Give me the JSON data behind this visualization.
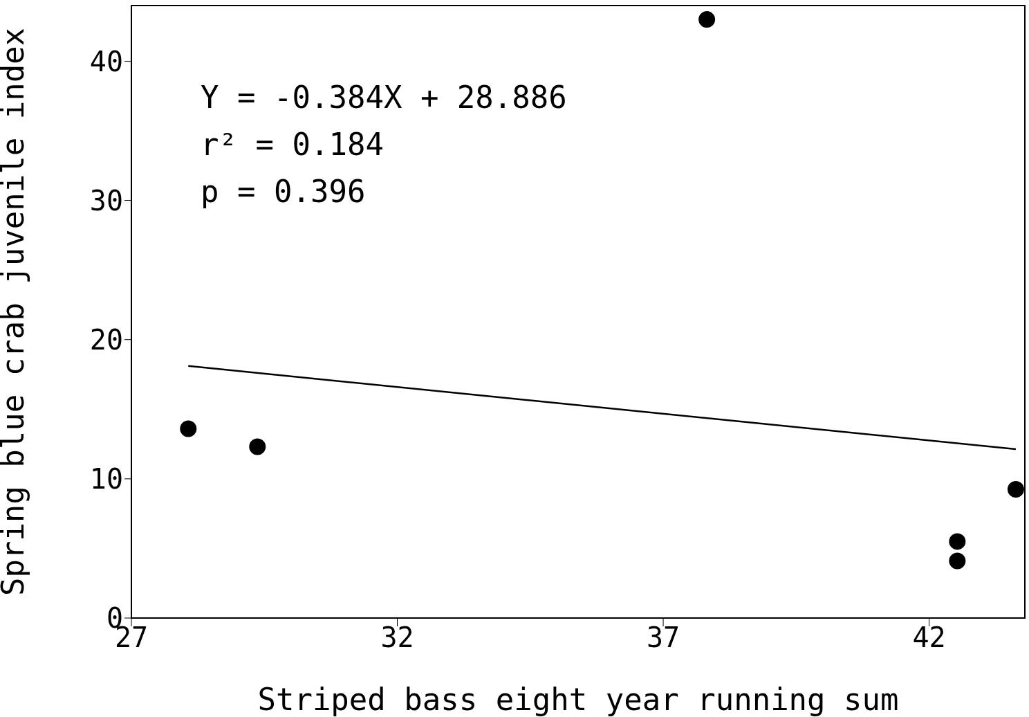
{
  "chart_data": {
    "type": "scatter",
    "xlabel": "Striped bass eight year running sum",
    "ylabel": "Spring blue crab juvenile index",
    "xlim": [
      27,
      43.8
    ],
    "ylim": [
      0,
      44
    ],
    "xticks": [
      27,
      32,
      37,
      42
    ],
    "yticks": [
      0,
      10,
      20,
      30,
      40
    ],
    "marker": "circle",
    "annotations": [
      "Y = -0.384X + 28.886",
      "r² = 0.184",
      "p = 0.396"
    ],
    "series": [
      {
        "color": "#000000",
        "x": [
          28.07,
          29.37,
          37.82,
          42.53,
          42.53,
          43.63
        ],
        "values": [
          13.6,
          12.3,
          43.0,
          5.5,
          4.1,
          9.25
        ]
      },
      {
        "type": "line",
        "color": "#000000",
        "marker": "none",
        "x": [
          28.07,
          43.63
        ],
        "values": [
          18.11,
          12.13
        ]
      }
    ]
  }
}
